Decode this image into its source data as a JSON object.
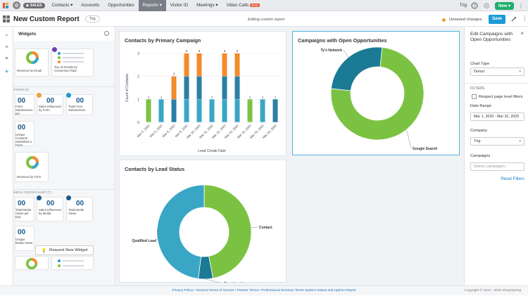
{
  "nav": {
    "sales_label": "SALES",
    "items": [
      {
        "label": "Contacts ▾"
      },
      {
        "label": "Accounts"
      },
      {
        "label": "Opportunities"
      },
      {
        "label": "Reports ▾"
      },
      {
        "label": "Visitor ID"
      },
      {
        "label": "Meetings ▾"
      },
      {
        "label": "Video Calls"
      }
    ],
    "beta": "Beta",
    "user": "Trig",
    "new_label": "New ▾"
  },
  "header": {
    "title": "New Custom Report",
    "tag": "Trig",
    "editing": "Editing custom report",
    "unsaved": "Unsaved changes",
    "save": "Save"
  },
  "widgets": {
    "title": "Widgets",
    "items": [
      {
        "label": "Revenue by Email"
      },
      {
        "label": "Top 10 Emails by Conversion Rate"
      },
      {
        "section": "FORMS (5)"
      },
      {
        "num": "00",
        "label": "Form Submissions per"
      },
      {
        "num": "00",
        "label": "Sales Influenced by Form"
      },
      {
        "num": "00",
        "label": "Total Form Submissions"
      },
      {
        "num": "00",
        "label": "Unique Contacts Submitted a Form"
      },
      {
        "label": "Revenue by Form"
      },
      {
        "section": "MEDIA CENTER ASSET (7)"
      },
      {
        "num": "00",
        "label": "Total Media Views per Day"
      },
      {
        "num": "00",
        "label": "Sales Influenced by Media"
      },
      {
        "num": "00",
        "label": "Total Media Views"
      },
      {
        "num": "00",
        "label": "Unique Media Views"
      }
    ],
    "request": "Request New Widget"
  },
  "charts": {
    "primary": {
      "title": "Contacts by Primary Campaign"
    },
    "open": {
      "title": "Campaigns with Open Opportunities"
    },
    "lead": {
      "title": "Contacts by Lead Status"
    }
  },
  "chart_data": [
    {
      "type": "bar",
      "title": "Contacts by Primary Campaign",
      "xlabel": "Lead Create Date",
      "ylabel": "Count of Contacts",
      "ylim": [
        0,
        3
      ],
      "categories": [
        "Mar 2, 2020",
        "Mar 5, 2020",
        "Mar 6, 2020",
        "Mar 9, 2020",
        "Mar 10, 2020",
        "Mar 11, 2020",
        "Mar 12, 2020",
        "Mar 13, 2020",
        "Mar 14, 2020",
        "Mar 15, 2020",
        "Mar 16, 2020"
      ],
      "values": [
        1,
        1,
        2,
        3,
        3,
        1,
        3,
        3,
        1,
        1,
        1
      ],
      "colors": [
        "#7cc242",
        "#3aa6c6",
        "#2b7fa3",
        "#f58a2c"
      ],
      "note_labels": "bar totals"
    },
    {
      "type": "pie",
      "title": "Campaigns with Open Opportunities",
      "series": [
        {
          "name": "Ty's Network",
          "value": 25
        },
        {
          "name": "Google Search",
          "value": 75
        }
      ],
      "colors": [
        "#1b7a94",
        "#7cc242"
      ]
    },
    {
      "type": "pie",
      "title": "Contacts by Lead Status",
      "series": [
        {
          "name": "Contact",
          "value": 47
        },
        {
          "name": "Open Lead",
          "value": 5
        },
        {
          "name": "Qualified Lead",
          "value": 48
        }
      ],
      "colors": [
        "#7cc242",
        "#1b7a94",
        "#3aa6c6"
      ]
    }
  ],
  "settings": {
    "title": "Edit Campaigns with Open Opportunities",
    "chart_type_label": "Chart Type",
    "chart_type": "Donut",
    "filters_label": "FILTERS",
    "respect_label": "Respect page level filters",
    "date_range_label": "Date Range",
    "date_range": "Mar 1, 2020 - Mar 31, 2020",
    "company_label": "Company",
    "company": "Trig",
    "campaigns_label": "Campaigns",
    "campaigns_placeholder": "Select campaigns...",
    "reset": "Reset Filters"
  },
  "footer": {
    "links": "Privacy Policy • General Terms of Service • Partner Terms • Professional Services Terms System Status and Uptime Report",
    "copyright": "Copyright © 2012 - 2020 SharpSpring"
  }
}
